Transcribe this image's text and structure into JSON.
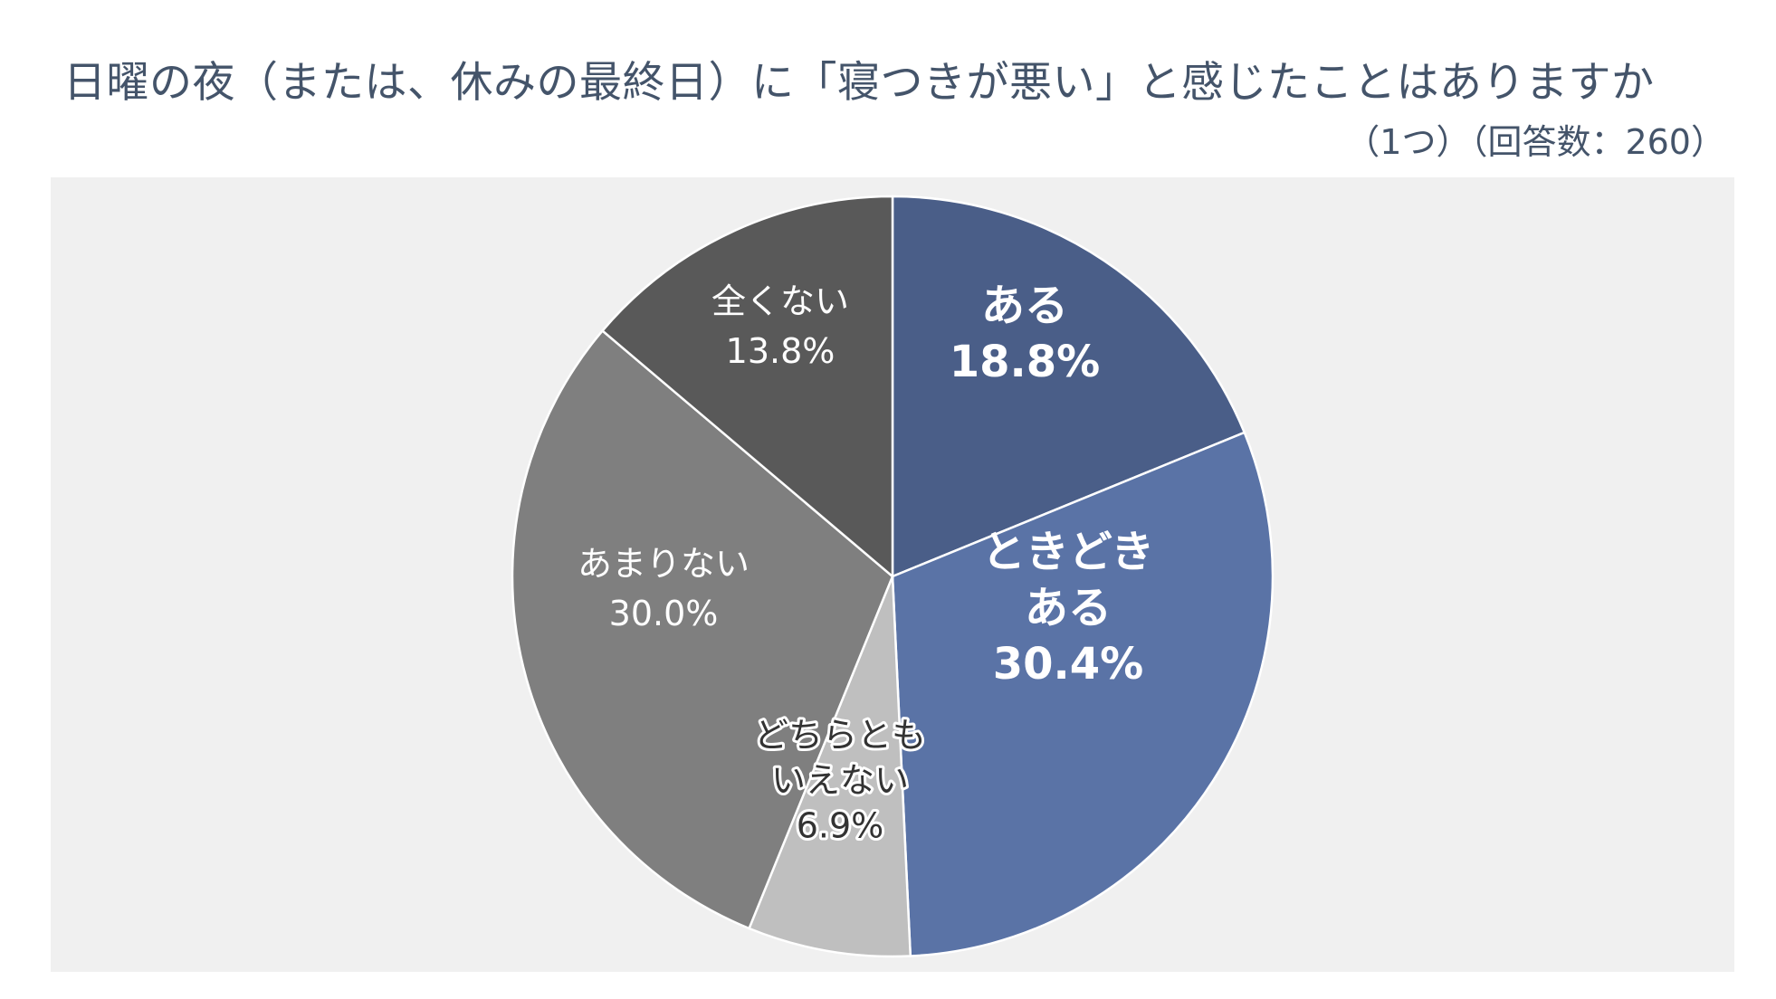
{
  "chart_data": {
    "type": "pie",
    "title": "日曜の夜（または、休みの最終日）に「寝つきが悪い」と感じたことはありますか",
    "subtitle": "（1つ）（回答数：260）",
    "slices": [
      {
        "label_lines": [
          "ある"
        ],
        "value": 18.8,
        "value_label": "18.8%",
        "color": "#4a5e88",
        "text_color": "#ffffff",
        "text_style": "bold"
      },
      {
        "label_lines": [
          "ときどき",
          "ある"
        ],
        "value": 30.4,
        "value_label": "30.4%",
        "color": "#5a73a6",
        "text_color": "#ffffff",
        "text_style": "bold"
      },
      {
        "label_lines": [
          "どちらとも",
          "いえない"
        ],
        "value": 6.9,
        "value_label": "6.9%",
        "color": "#bfbfbf",
        "text_color": "#333333",
        "text_style": "halo"
      },
      {
        "label_lines": [
          "あまりない"
        ],
        "value": 30.0,
        "value_label": "30.0%",
        "color": "#7f7f7f",
        "text_color": "#ffffff",
        "text_style": "normal"
      },
      {
        "label_lines": [
          "全くない"
        ],
        "value": 13.8,
        "value_label": "13.8%",
        "color": "#595959",
        "text_color": "#ffffff",
        "text_style": "normal"
      }
    ],
    "start_angle_deg": 0,
    "direction": "clockwise",
    "legend": "none"
  }
}
